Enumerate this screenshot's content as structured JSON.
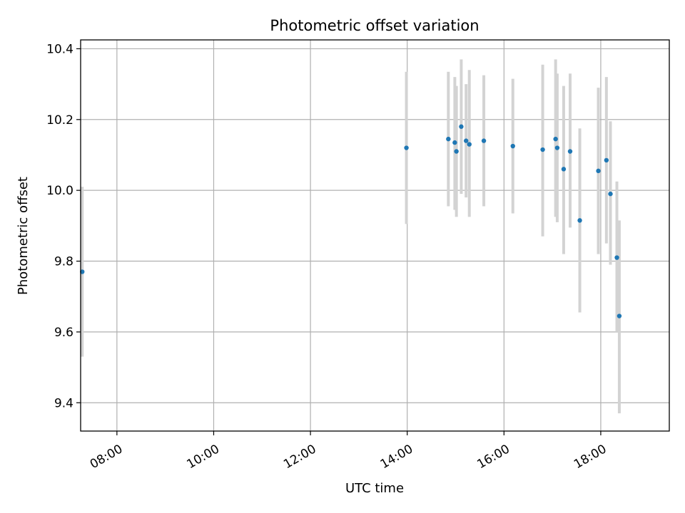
{
  "chart_data": {
    "type": "scatter",
    "title": "Photometric offset variation",
    "xlabel": "UTC time",
    "ylabel": "Photometric offset",
    "x_axis_type": "time",
    "xlim": [
      "07:15",
      "19:25"
    ],
    "ylim": [
      9.32,
      10.425
    ],
    "x_ticks": [
      "08:00",
      "10:00",
      "12:00",
      "14:00",
      "16:00",
      "18:00"
    ],
    "y_ticks": [
      9.4,
      9.6,
      9.8,
      10.0,
      10.2,
      10.4
    ],
    "grid": true,
    "point_color": "#1f77b4",
    "errorbar_color": "#d3d3d3",
    "points": [
      {
        "x": "07:17",
        "y": 9.77,
        "yerr_low": 9.53,
        "yerr_high": 10.01
      },
      {
        "x": "13:59",
        "y": 10.12,
        "yerr_low": 9.905,
        "yerr_high": 10.335
      },
      {
        "x": "14:51",
        "y": 10.145,
        "yerr_low": 9.955,
        "yerr_high": 10.335
      },
      {
        "x": "14:59",
        "y": 10.135,
        "yerr_low": 9.945,
        "yerr_high": 10.32
      },
      {
        "x": "15:01",
        "y": 10.11,
        "yerr_low": 9.925,
        "yerr_high": 10.295
      },
      {
        "x": "15:07",
        "y": 10.18,
        "yerr_low": 9.99,
        "yerr_high": 10.37
      },
      {
        "x": "15:13",
        "y": 10.14,
        "yerr_low": 9.98,
        "yerr_high": 10.3
      },
      {
        "x": "15:17",
        "y": 10.13,
        "yerr_low": 9.925,
        "yerr_high": 10.34
      },
      {
        "x": "15:35",
        "y": 10.14,
        "yerr_low": 9.955,
        "yerr_high": 10.325
      },
      {
        "x": "16:11",
        "y": 10.125,
        "yerr_low": 9.935,
        "yerr_high": 10.315
      },
      {
        "x": "16:48",
        "y": 10.115,
        "yerr_low": 9.87,
        "yerr_high": 10.355
      },
      {
        "x": "17:04",
        "y": 10.145,
        "yerr_low": 9.925,
        "yerr_high": 10.37
      },
      {
        "x": "17:06",
        "y": 10.12,
        "yerr_low": 9.91,
        "yerr_high": 10.33
      },
      {
        "x": "17:14",
        "y": 10.06,
        "yerr_low": 9.82,
        "yerr_high": 10.295
      },
      {
        "x": "17:22",
        "y": 10.11,
        "yerr_low": 9.895,
        "yerr_high": 10.33
      },
      {
        "x": "17:34",
        "y": 9.915,
        "yerr_low": 9.655,
        "yerr_high": 10.175
      },
      {
        "x": "17:57",
        "y": 10.055,
        "yerr_low": 9.82,
        "yerr_high": 10.29
      },
      {
        "x": "18:07",
        "y": 10.085,
        "yerr_low": 9.85,
        "yerr_high": 10.32
      },
      {
        "x": "18:12",
        "y": 9.99,
        "yerr_low": 9.79,
        "yerr_high": 10.195
      },
      {
        "x": "18:20",
        "y": 9.81,
        "yerr_low": 9.6,
        "yerr_high": 10.025
      },
      {
        "x": "18:23",
        "y": 9.645,
        "yerr_low": 9.37,
        "yerr_high": 9.915
      }
    ]
  }
}
